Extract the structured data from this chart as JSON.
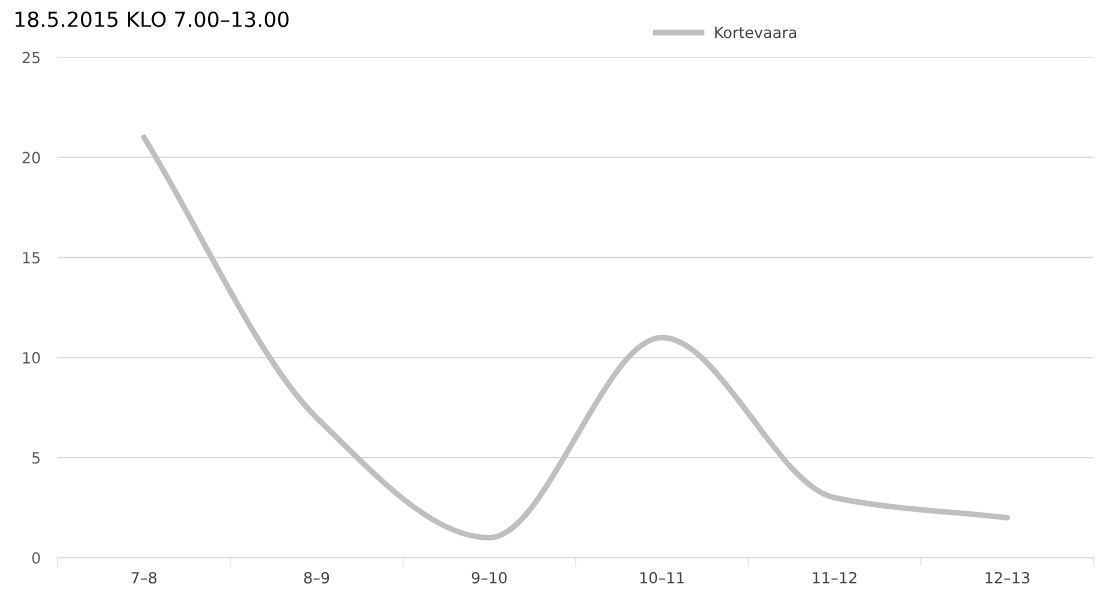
{
  "chart_data": {
    "type": "line",
    "title": "18.5.2015 KLO 7.00–13.00",
    "categories": [
      "7–8",
      "8–9",
      "9–10",
      "10–11",
      "11–12",
      "12–13"
    ],
    "series": [
      {
        "name": "Kortevaara",
        "color": "#bfbfbf",
        "values": [
          21,
          7,
          1,
          11,
          3,
          2
        ]
      }
    ],
    "ylim": [
      0,
      25
    ],
    "yticks": [
      0,
      5,
      10,
      15,
      20,
      25
    ],
    "grid": "y",
    "legend": "top right",
    "marker": "none",
    "line_style": "solid"
  }
}
